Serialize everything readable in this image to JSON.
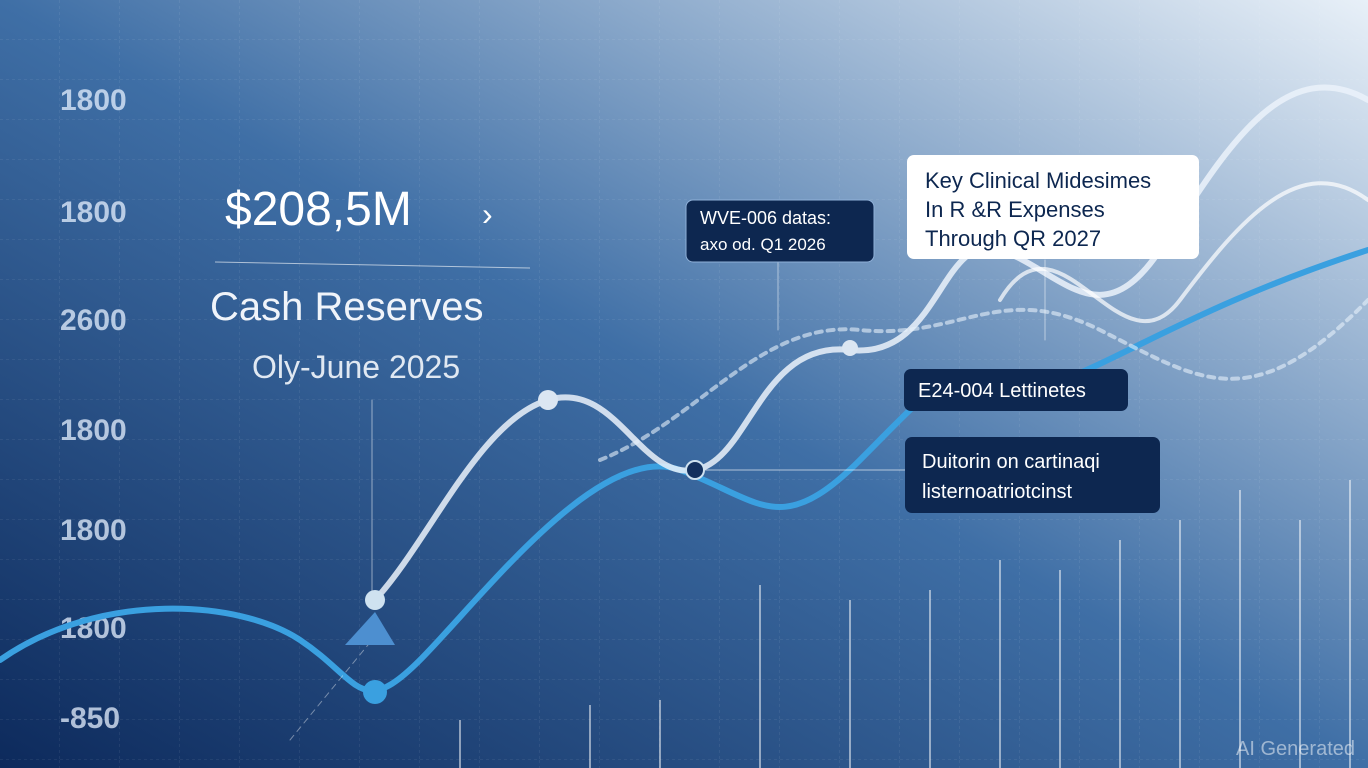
{
  "axis_labels": [
    "1800",
    "1800",
    "2600",
    "1800",
    "1800",
    "1800",
    "-850"
  ],
  "headline": {
    "amount": "$208,5M",
    "label": "Cash Reserves",
    "period": "Oly-June 2025"
  },
  "callouts": [
    {
      "lines": [
        "WVE-006 datas:",
        "axo od. Q1 2026"
      ]
    },
    {
      "lines": [
        "Key Clinical Midesimes",
        "In R &R Expenses",
        "Through QR 2027"
      ]
    },
    {
      "lines": [
        "E24-004 Lettinetes"
      ]
    },
    {
      "lines": [
        "Duitorin on cartinaqi",
        "listernoatriotcinst"
      ]
    }
  ],
  "watermark": "AI Generated"
}
